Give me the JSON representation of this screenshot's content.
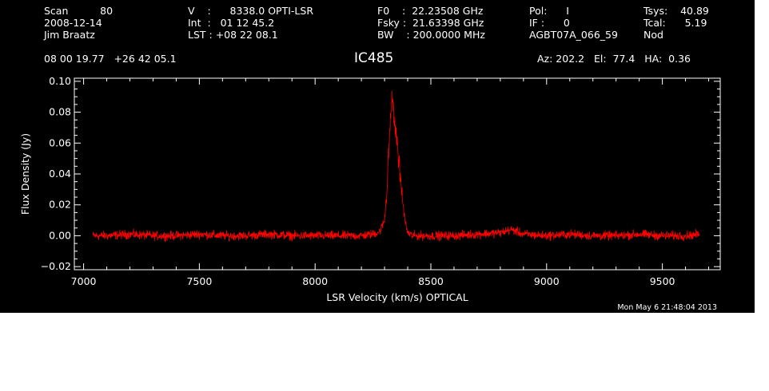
{
  "header": {
    "col1": [
      "Scan          80",
      "2008-12-14",
      "Jim Braatz"
    ],
    "col2": [
      "V    :      8338.0 OPTI-LSR",
      "Int  :   01 12 45.2",
      "LST : +08 22 08.1"
    ],
    "col3": [
      "F0    :  22.23508 GHz",
      "Fsky :  21.63398 GHz",
      "BW    : 200.0000 MHz"
    ],
    "col4": [
      "Pol:      I",
      "IF :      0",
      "AGBT07A_066_59"
    ],
    "col5": [
      "Tsys:    40.89",
      "Tcal:      5.19",
      "Nod"
    ],
    "coords": "08 00 19.77   +26 42 05.1",
    "source": "IC485",
    "azelha": "Az: 202.2   El:  77.4   HA:  0.36",
    "timestamp": "Mon May  6 21:48:04 2013"
  },
  "colors": {
    "background": "#000000",
    "axes": "#ffffff",
    "trace": "#ff0000"
  },
  "chart_data": {
    "type": "line",
    "title": "IC485",
    "xlabel": "LSR Velocity (km/s) OPTICAL",
    "ylabel": "Flux Density (Jy)",
    "xlim": [
      6960,
      9750
    ],
    "ylim": [
      -0.022,
      0.102
    ],
    "xticks": [
      7000,
      7500,
      8000,
      8500,
      9000,
      9500
    ],
    "xtick_labels": [
      "7000",
      "7500",
      "8000",
      "8500",
      "9000",
      "9500"
    ],
    "yticks": [
      -0.02,
      0.0,
      0.02,
      0.04,
      0.06,
      0.08,
      0.1
    ],
    "ytick_labels": [
      "−0.02",
      "0.00",
      "0.02",
      "0.04",
      "0.06",
      "0.08",
      "0.10"
    ],
    "series": [
      {
        "x": [
          7040,
          7100,
          7200,
          7300,
          7400,
          7500,
          7600,
          7700,
          7800,
          7900,
          8000,
          8100,
          8200,
          8250,
          8280,
          8300,
          8310,
          8320,
          8330,
          8335,
          8340,
          8345,
          8350,
          8355,
          8360,
          8370,
          8380,
          8390,
          8400,
          8420,
          8450,
          8500,
          8600,
          8700,
          8800,
          8850,
          8900,
          9000,
          9100,
          9200,
          9300,
          9400,
          9500,
          9600,
          9660
        ],
        "y": [
          0.0,
          0.0,
          0.001,
          0.0,
          0.0,
          0.001,
          0.0,
          0.0,
          0.001,
          0.0,
          0.0,
          0.0,
          0.0,
          0.001,
          0.003,
          0.01,
          0.03,
          0.06,
          0.085,
          0.088,
          0.075,
          0.07,
          0.065,
          0.06,
          0.05,
          0.035,
          0.02,
          0.008,
          0.002,
          0.0,
          0.0,
          0.0,
          0.0,
          0.001,
          0.002,
          0.004,
          0.001,
          0.0,
          0.001,
          0.0,
          0.0,
          0.001,
          0.0,
          0.0,
          0.001
        ]
      }
    ],
    "noise_rms": 0.0025
  }
}
